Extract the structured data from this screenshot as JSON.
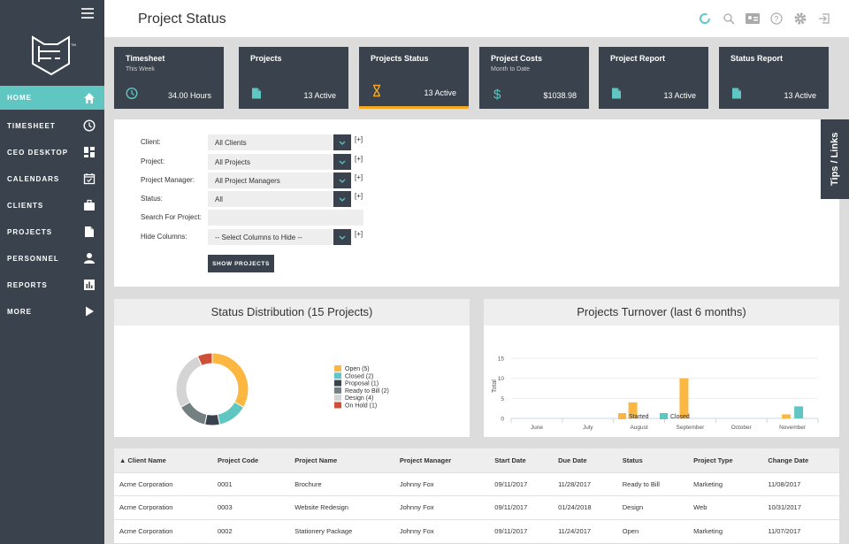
{
  "header": {
    "title": "Project Status",
    "icons": [
      "spinner-icon",
      "search-icon",
      "id-card-icon",
      "help-icon",
      "gear-icon",
      "logout-icon"
    ]
  },
  "sidebar": {
    "items": [
      {
        "label": "HOME",
        "icon": "home-icon",
        "active": true
      },
      {
        "label": "TIMESHEET",
        "icon": "clock-icon"
      },
      {
        "label": "CEO DESKTOP",
        "icon": "dashboard-icon"
      },
      {
        "label": "CALENDARS",
        "icon": "calendar-icon"
      },
      {
        "label": "CLIENTS",
        "icon": "briefcase-icon"
      },
      {
        "label": "PROJECTS",
        "icon": "file-icon"
      },
      {
        "label": "PERSONNEL",
        "icon": "person-icon"
      },
      {
        "label": "REPORTS",
        "icon": "chart-icon"
      },
      {
        "label": "MORE",
        "icon": "play-icon"
      }
    ]
  },
  "cards": [
    {
      "title": "Timesheet",
      "sub": "This Week",
      "value": "34.00 Hours",
      "icon": "clock-icon"
    },
    {
      "title": "Projects",
      "sub": "",
      "value": "13 Active",
      "icon": "file-icon"
    },
    {
      "title": "Projects Status",
      "sub": "",
      "value": "13 Active",
      "icon": "hourglass-icon",
      "active": true
    },
    {
      "title": "Project Costs",
      "sub": "Month to Date",
      "value": "$1038.98",
      "icon": "dollar-icon"
    },
    {
      "title": "Project Report",
      "sub": "",
      "value": "13 Active",
      "icon": "file-icon"
    },
    {
      "title": "Status Report",
      "sub": "",
      "value": "13 Active",
      "icon": "file-icon"
    }
  ],
  "filters": {
    "client_label": "Client:",
    "client_value": "All Clients",
    "project_label": "Project:",
    "project_value": "All Projects",
    "pm_label": "Project Manager:",
    "pm_value": "All Project Managers",
    "status_label": "Status:",
    "status_value": "All",
    "search_label": "Search For Project:",
    "search_value": "",
    "hide_label": "Hide Columns:",
    "hide_value": "-- Select Columns to Hide --",
    "plus": "[+]",
    "button": "SHOW PROJECTS"
  },
  "tips": "Tips / Links",
  "chart_data": [
    {
      "type": "pie",
      "title": "Status Distribution (15 Projects)",
      "donut": true,
      "legend": "right",
      "categories": [
        "Open (5)",
        "Closed (2)",
        "Proposal (1)",
        "Ready to Bill (2)",
        "Design (4)",
        "On Hold (1)"
      ],
      "values": [
        5,
        2,
        1,
        2,
        4,
        1
      ],
      "colors": [
        "#fbb740",
        "#5fc6c2",
        "#3a434d",
        "#737f80",
        "#d4d4d4",
        "#cd5038"
      ]
    },
    {
      "type": "bar",
      "title": "Projects Turnover (last 6 months)",
      "ylabel": "Total",
      "ylim": [
        0,
        15
      ],
      "yticks": [
        "0",
        "5",
        "10",
        "15"
      ],
      "grid": true,
      "legend": "bottom",
      "categories": [
        "June",
        "July",
        "August",
        "September",
        "October",
        "November"
      ],
      "series": [
        {
          "name": "Started",
          "values": [
            0,
            0,
            4,
            10,
            0,
            1
          ],
          "color": "#fbb740"
        },
        {
          "name": "Closed",
          "values": [
            0,
            0,
            0,
            0,
            0,
            3
          ],
          "color": "#5fc6c2"
        }
      ]
    }
  ],
  "table": {
    "columns": [
      "▲ Client Name",
      "Project Code",
      "Project Name",
      "Project Manager",
      "Start Date",
      "Due Date",
      "Status",
      "Project Type",
      "Change Date"
    ],
    "rows": [
      [
        "Acme Corporation",
        "0001",
        "Brochure",
        "Johnny Fox",
        "09/11/2017",
        "11/28/2017",
        "Ready to Bill",
        "Marketing",
        "11/08/2017"
      ],
      [
        "Acme Corporation",
        "0003",
        "Website Redesign",
        "Johnny Fox",
        "09/11/2017",
        "01/24/2018",
        "Design",
        "Web",
        "10/31/2017"
      ],
      [
        "Acme Corporation",
        "0002",
        "Stationery Package",
        "Johnny Fox",
        "09/11/2017",
        "11/24/2017",
        "Open",
        "Marketing",
        "11/07/2017"
      ]
    ]
  }
}
